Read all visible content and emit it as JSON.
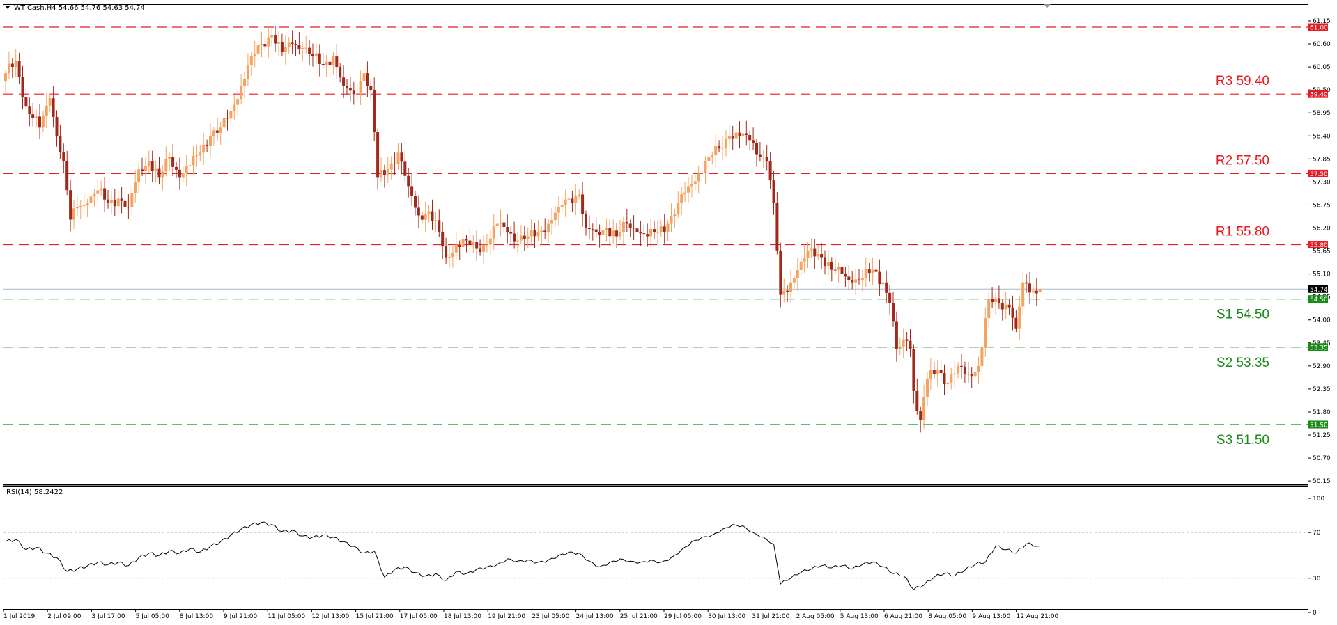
{
  "header": {
    "symbol_info": "WTICash,H4  54.66 54.76 54.63 54.74",
    "rsi_label": "RSI(14) 58.2422"
  },
  "chart_data": [
    {
      "type": "candlestick",
      "symbol": "WTICash",
      "timeframe": "H4",
      "last_ohlc": {
        "open": 54.66,
        "high": 54.76,
        "low": 54.63,
        "close": 54.74
      },
      "ylim": [
        50.15,
        61.3
      ],
      "y_ticks": [
        "61.15",
        "60.60",
        "60.05",
        "59.50",
        "58.95",
        "58.40",
        "57.85",
        "57.30",
        "56.75",
        "56.20",
        "55.65",
        "55.10",
        "54.55",
        "54.00",
        "53.45",
        "52.90",
        "52.35",
        "51.80",
        "51.25",
        "50.70",
        "50.15"
      ],
      "x_ticks": [
        "1 Jul 2019",
        "2 Jul 09:00",
        "3 Jul 17:00",
        "5 Jul 05:00",
        "8 Jul 13:00",
        "9 Jul 21:00",
        "11 Jul 05:00",
        "12 Jul 13:00",
        "15 Jul 21:00",
        "17 Jul 05:00",
        "18 Jul 13:00",
        "19 Jul 21:00",
        "23 Jul 05:00",
        "24 Jul 13:00",
        "25 Jul 21:00",
        "29 Jul 05:00",
        "30 Jul 13:00",
        "31 Jul 21:00",
        "2 Aug 05:00",
        "5 Aug 13:00",
        "6 Aug 21:00",
        "8 Aug 05:00",
        "9 Aug 13:00",
        "12 Aug 21:00"
      ],
      "current_price": {
        "label": "54.74",
        "value": 54.74
      },
      "levels": [
        {
          "name": "R3",
          "label": "R3 59.40",
          "value": 59.4,
          "badge": "59.40",
          "color": "#e51c23"
        },
        {
          "name": "R2",
          "label": "R2 57.50",
          "value": 57.5,
          "badge": "57.50",
          "color": "#e51c23"
        },
        {
          "name": "R1",
          "label": "R1  55.80",
          "value": 55.8,
          "badge": "55.80",
          "color": "#e51c23"
        },
        {
          "name": "S1",
          "label": "S1 54.50",
          "value": 54.5,
          "badge": "54.50",
          "color": "#1a8a1a"
        },
        {
          "name": "S2",
          "label": "S2 53.35",
          "value": 53.35,
          "badge": "53.35",
          "color": "#1a8a1a"
        },
        {
          "name": "S3",
          "label": "S3 51.50",
          "value": 51.5,
          "badge": "51.50",
          "color": "#1a8a1a"
        },
        {
          "name": "top",
          "label": "",
          "value": 61.0,
          "badge": "61.00",
          "color": "#e51c23"
        }
      ],
      "bull_color": "#f4a460",
      "bear_color": "#a0291c",
      "price_anchors": [
        [
          0,
          59.9
        ],
        [
          3,
          60.2
        ],
        [
          6,
          59.1
        ],
        [
          10,
          58.6
        ],
        [
          13,
          59.3
        ],
        [
          15,
          58.4
        ],
        [
          17,
          57.8
        ],
        [
          19,
          56.4
        ],
        [
          21,
          56.7
        ],
        [
          24,
          56.8
        ],
        [
          27,
          57.1
        ],
        [
          30,
          56.8
        ],
        [
          33,
          56.9
        ],
        [
          36,
          56.7
        ],
        [
          39,
          57.6
        ],
        [
          42,
          57.8
        ],
        [
          45,
          57.4
        ],
        [
          48,
          57.9
        ],
        [
          51,
          57.4
        ],
        [
          54,
          57.7
        ],
        [
          57,
          58.0
        ],
        [
          60,
          58.4
        ],
        [
          63,
          58.6
        ],
        [
          66,
          59.0
        ],
        [
          69,
          59.6
        ],
        [
          72,
          60.3
        ],
        [
          75,
          60.6
        ],
        [
          78,
          60.8
        ],
        [
          81,
          60.4
        ],
        [
          84,
          60.6
        ],
        [
          87,
          60.5
        ],
        [
          90,
          60.3
        ],
        [
          93,
          60.1
        ],
        [
          96,
          60.3
        ],
        [
          99,
          59.6
        ],
        [
          102,
          59.4
        ],
        [
          105,
          59.9
        ],
        [
          107,
          59.5
        ],
        [
          109,
          57.4
        ],
        [
          112,
          57.6
        ],
        [
          115,
          58.0
        ],
        [
          118,
          57.2
        ],
        [
          121,
          56.5
        ],
        [
          124,
          56.6
        ],
        [
          127,
          56.1
        ],
        [
          129,
          55.5
        ],
        [
          132,
          55.8
        ],
        [
          135,
          55.9
        ],
        [
          138,
          55.7
        ],
        [
          141,
          55.8
        ],
        [
          144,
          56.3
        ],
        [
          147,
          56.1
        ],
        [
          150,
          55.9
        ],
        [
          153,
          56.0
        ],
        [
          156,
          56.1
        ],
        [
          159,
          56.3
        ],
        [
          162,
          56.7
        ],
        [
          165,
          56.9
        ],
        [
          168,
          57.0
        ],
        [
          170,
          56.2
        ],
        [
          173,
          56.1
        ],
        [
          176,
          56.2
        ],
        [
          179,
          56.0
        ],
        [
          182,
          56.3
        ],
        [
          185,
          56.1
        ],
        [
          188,
          56.0
        ],
        [
          191,
          56.1
        ],
        [
          194,
          56.3
        ],
        [
          197,
          56.8
        ],
        [
          200,
          57.2
        ],
        [
          203,
          57.5
        ],
        [
          206,
          57.9
        ],
        [
          209,
          58.1
        ],
        [
          212,
          58.4
        ],
        [
          215,
          58.4
        ],
        [
          218,
          58.3
        ],
        [
          221,
          57.9
        ],
        [
          223,
          57.8
        ],
        [
          225,
          56.8
        ],
        [
          227,
          54.6
        ],
        [
          230,
          54.9
        ],
        [
          233,
          55.4
        ],
        [
          236,
          55.7
        ],
        [
          239,
          55.5
        ],
        [
          242,
          55.2
        ],
        [
          245,
          55.1
        ],
        [
          248,
          54.9
        ],
        [
          251,
          55.0
        ],
        [
          254,
          55.2
        ],
        [
          257,
          54.9
        ],
        [
          259,
          54.4
        ],
        [
          261,
          53.3
        ],
        [
          264,
          53.5
        ],
        [
          265,
          53.3
        ],
        [
          266,
          52.3
        ],
        [
          268,
          51.6
        ],
        [
          270,
          52.6
        ],
        [
          273,
          52.8
        ],
        [
          276,
          52.5
        ],
        [
          279,
          52.9
        ],
        [
          282,
          52.7
        ],
        [
          285,
          52.9
        ],
        [
          288,
          54.5
        ],
        [
          291,
          54.4
        ],
        [
          294,
          54.3
        ],
        [
          296,
          53.8
        ],
        [
          298,
          54.9
        ],
        [
          301,
          54.7
        ],
        [
          303,
          54.74
        ]
      ],
      "rsi": {
        "label": "RSI(14) 58.2422",
        "value": 58.2422,
        "ylim": [
          0,
          100
        ],
        "levels": [
          70,
          30
        ],
        "y_ticks": [
          "100",
          "70",
          "30",
          "0"
        ],
        "anchors": [
          [
            0,
            62
          ],
          [
            3,
            64
          ],
          [
            6,
            55
          ],
          [
            9,
            57
          ],
          [
            12,
            52
          ],
          [
            15,
            48
          ],
          [
            18,
            36
          ],
          [
            21,
            38
          ],
          [
            24,
            41
          ],
          [
            27,
            44
          ],
          [
            30,
            42
          ],
          [
            33,
            44
          ],
          [
            36,
            41
          ],
          [
            39,
            48
          ],
          [
            42,
            52
          ],
          [
            45,
            50
          ],
          [
            48,
            54
          ],
          [
            51,
            52
          ],
          [
            54,
            56
          ],
          [
            57,
            53
          ],
          [
            60,
            58
          ],
          [
            63,
            62
          ],
          [
            66,
            68
          ],
          [
            69,
            73
          ],
          [
            72,
            77
          ],
          [
            75,
            79
          ],
          [
            78,
            77
          ],
          [
            81,
            71
          ],
          [
            84,
            72
          ],
          [
            87,
            67
          ],
          [
            90,
            66
          ],
          [
            93,
            68
          ],
          [
            96,
            66
          ],
          [
            99,
            62
          ],
          [
            102,
            58
          ],
          [
            105,
            52
          ],
          [
            108,
            54
          ],
          [
            111,
            31
          ],
          [
            114,
            38
          ],
          [
            117,
            40
          ],
          [
            120,
            35
          ],
          [
            123,
            32
          ],
          [
            126,
            34
          ],
          [
            129,
            28
          ],
          [
            132,
            36
          ],
          [
            135,
            34
          ],
          [
            138,
            38
          ],
          [
            141,
            40
          ],
          [
            144,
            42
          ],
          [
            147,
            47
          ],
          [
            150,
            45
          ],
          [
            153,
            46
          ],
          [
            156,
            44
          ],
          [
            159,
            46
          ],
          [
            162,
            50
          ],
          [
            165,
            53
          ],
          [
            168,
            52
          ],
          [
            171,
            45
          ],
          [
            174,
            40
          ],
          [
            177,
            44
          ],
          [
            180,
            47
          ],
          [
            183,
            45
          ],
          [
            186,
            44
          ],
          [
            189,
            46
          ],
          [
            192,
            44
          ],
          [
            195,
            48
          ],
          [
            198,
            55
          ],
          [
            201,
            62
          ],
          [
            204,
            66
          ],
          [
            207,
            68
          ],
          [
            210,
            73
          ],
          [
            213,
            77
          ],
          [
            216,
            76
          ],
          [
            219,
            70
          ],
          [
            222,
            66
          ],
          [
            225,
            60
          ],
          [
            227,
            25
          ],
          [
            230,
            30
          ],
          [
            233,
            35
          ],
          [
            236,
            38
          ],
          [
            239,
            41
          ],
          [
            242,
            39
          ],
          [
            245,
            41
          ],
          [
            248,
            38
          ],
          [
            251,
            42
          ],
          [
            254,
            44
          ],
          [
            257,
            40
          ],
          [
            260,
            34
          ],
          [
            263,
            32
          ],
          [
            266,
            20
          ],
          [
            269,
            24
          ],
          [
            272,
            31
          ],
          [
            275,
            34
          ],
          [
            278,
            32
          ],
          [
            281,
            37
          ],
          [
            284,
            42
          ],
          [
            287,
            44
          ],
          [
            290,
            58
          ],
          [
            293,
            55
          ],
          [
            296,
            52
          ],
          [
            299,
            60
          ],
          [
            303,
            58
          ]
        ]
      }
    }
  ]
}
